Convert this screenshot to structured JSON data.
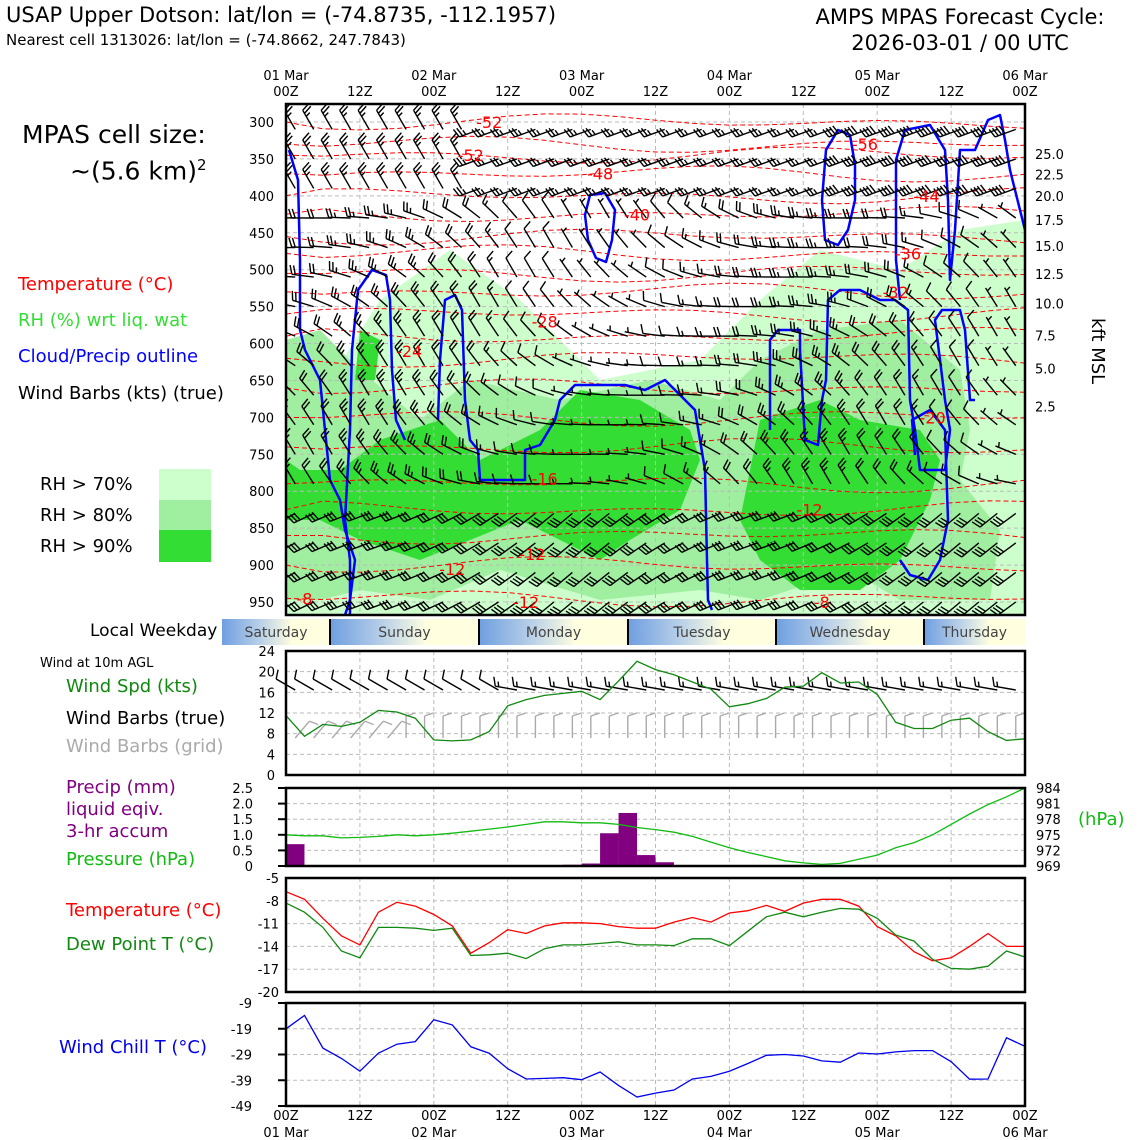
{
  "header": {
    "title": "USAP Upper Dotson: lat/lon = (-74.8735, -112.1957)",
    "subtitle": "Nearest cell 1313026: lat/lon = (-74.8662, 247.7843)",
    "cycle_line1": "AMPS MPAS Forecast Cycle:",
    "cycle_line2": "2026-03-01 / 00 UTC"
  },
  "cell_size": {
    "line1": "MPAS cell size:",
    "line2": "~(5.6 km)",
    "sup": "2"
  },
  "legend": {
    "temperature": "Temperature (°C)",
    "rh": "RH (%) wrt liq. wat",
    "cloud": "Cloud/Precip outline",
    "barbs": "Wind Barbs (kts) (true)",
    "rh70": "RH > 70%",
    "rh80": "RH > 80%",
    "rh90": "RH > 90%",
    "local_weekday": "Local Weekday",
    "wind_10m": "Wind at 10m AGL",
    "wind_spd": "Wind Spd (kts)",
    "barbs_true": "Wind Barbs (true)",
    "barbs_grid": "Wind Barbs (grid)",
    "precip1": "Precip (mm)",
    "precip2": "liquid eqiv.",
    "precip3": "3-hr accum",
    "pressure": "Pressure (hPa)",
    "temp2": "Temperature (°C)",
    "dewpt": "Dew Point T (°C)",
    "windchill": "Wind Chill T (°C)",
    "hpa": "(hPa)",
    "kft": "kft MSL"
  },
  "colors": {
    "temperature": "#ff0000",
    "rh_label": "#33dd33",
    "cloud": "#0000ff",
    "rh70": "#ccffcc",
    "rh80": "#a0eea0",
    "rh90": "#33dd33",
    "wind_spd": "#118811",
    "barbs_grid": "#aaaaaa",
    "precip": "#800080",
    "pressure": "#11bb11",
    "dewpt": "#118811",
    "windchill": "#0000ee"
  },
  "chart_data": [
    {
      "type": "heatmap",
      "name": "cross-section",
      "title": "Vertical cross-section (RH shading, temperature contours, cloud outline, wind barbs)",
      "top_axis": {
        "dates": [
          "01 Mar",
          "",
          "02 Mar",
          "",
          "03 Mar",
          "",
          "04 Mar",
          "",
          "05 Mar",
          "",
          "06 Mar"
        ],
        "hours": [
          "00Z",
          "12Z",
          "00Z",
          "12Z",
          "00Z",
          "12Z",
          "00Z",
          "12Z",
          "00Z",
          "12Z",
          "00Z"
        ]
      },
      "ylabel_left": "Pressure (hPa)",
      "yticks_left": [
        300,
        350,
        400,
        450,
        500,
        550,
        600,
        650,
        700,
        750,
        800,
        850,
        900,
        950
      ],
      "ylim": [
        950,
        300
      ],
      "ylabel_right": "kft MSL",
      "yticks_right": [
        {
          "label": "25.0",
          "hpa": 343
        },
        {
          "label": "22.5",
          "hpa": 371
        },
        {
          "label": "20.0",
          "hpa": 400
        },
        {
          "label": "17.5",
          "hpa": 433
        },
        {
          "label": "15.0",
          "hpa": 468
        },
        {
          "label": "12.5",
          "hpa": 506
        },
        {
          "label": "10.0",
          "hpa": 546
        },
        {
          "label": "7.5",
          "hpa": 589
        },
        {
          "label": "5.0",
          "hpa": 634
        },
        {
          "label": "2.5",
          "hpa": 685
        }
      ],
      "temperature_contour_labels": [
        {
          "text": "-52",
          "hour": 33,
          "hpa": 300
        },
        {
          "text": "-52",
          "hour": 30,
          "hpa": 345
        },
        {
          "text": "-56",
          "hour": 94,
          "hpa": 330
        },
        {
          "text": "-48",
          "hour": 51,
          "hpa": 370
        },
        {
          "text": "-44",
          "hour": 104,
          "hpa": 400
        },
        {
          "text": "-40",
          "hour": 57,
          "hpa": 425
        },
        {
          "text": "-36",
          "hour": 101,
          "hpa": 478
        },
        {
          "text": "-32",
          "hour": 99,
          "hpa": 530
        },
        {
          "text": "-28",
          "hour": 42,
          "hpa": 570
        },
        {
          "text": "-24",
          "hour": 20,
          "hpa": 610
        },
        {
          "text": "-20",
          "hour": 105,
          "hpa": 700
        },
        {
          "text": "-16",
          "hour": 42,
          "hpa": 783
        },
        {
          "text": "-12",
          "hour": 85,
          "hpa": 825
        },
        {
          "text": "-12",
          "hour": 40,
          "hpa": 885
        },
        {
          "text": "-12",
          "hour": 27,
          "hpa": 905
        },
        {
          "text": "-12",
          "hour": 39,
          "hpa": 950
        },
        {
          "text": "-8",
          "hour": 3,
          "hpa": 945
        },
        {
          "text": "-8",
          "hour": 87,
          "hpa": 950
        }
      ],
      "legend": [
        "Temperature (°C)",
        "RH (%) wrt liq. wat",
        "Cloud/Precip outline",
        "Wind Barbs (kts) (true)"
      ]
    },
    {
      "type": "table",
      "name": "local-weekday",
      "label": "Local Weekday",
      "days": [
        "Saturday",
        "Sunday",
        "Monday",
        "Tuesday",
        "Wednesday",
        "Thursday"
      ]
    },
    {
      "type": "line",
      "name": "wind-10m",
      "title": "Wind at 10m AGL",
      "x_hours_step": 3,
      "ylim": [
        0,
        24
      ],
      "yticks": [
        0,
        4,
        8,
        12,
        16,
        20,
        24
      ],
      "series": [
        {
          "name": "Wind Spd (kts)",
          "values": [
            11.5,
            7.5,
            9.8,
            9.4,
            10.2,
            12.5,
            12.2,
            11.0,
            6.8,
            6.6,
            6.8,
            8.4,
            13.4,
            14.6,
            15.4,
            15.8,
            16.2,
            14.6,
            18.2,
            22.0,
            20.4,
            19.4,
            18.0,
            16.6,
            13.2,
            13.8,
            14.8,
            17.0,
            17.2,
            19.8,
            17.8,
            18.0,
            15.6,
            10.2,
            9.0,
            9.0,
            10.6,
            11.0,
            8.4,
            6.7,
            7.0
          ]
        }
      ]
    },
    {
      "type": "bar",
      "name": "precip-pressure",
      "x_hours_step": 3,
      "ylim_precip": [
        0,
        2.5
      ],
      "yticks_precip": [
        "0",
        "0.5",
        "1.0",
        "1.5",
        "2.0",
        "2.5"
      ],
      "ylim_pressure": [
        969,
        984
      ],
      "yticks_pressure": [
        969,
        972,
        975,
        978,
        981,
        984
      ],
      "ylabel_right": "(hPa)",
      "series": [
        {
          "name": "Precip (mm) liquid eqiv. 3-hr accum",
          "values": [
            0.7,
            0,
            0,
            0,
            0,
            0,
            0,
            0,
            0,
            0,
            0,
            0,
            0,
            0,
            0,
            0.04,
            0.08,
            1.05,
            1.7,
            0.35,
            0.12,
            0,
            0,
            0,
            0,
            0,
            0,
            0,
            0,
            0,
            0,
            0,
            0,
            0,
            0,
            0,
            0,
            0,
            0,
            0,
            0
          ]
        },
        {
          "name": "Pressure (hPa)",
          "values": [
            975.0,
            974.8,
            974.8,
            974.4,
            974.5,
            974.7,
            975.0,
            974.8,
            975.0,
            975.3,
            975.7,
            976.1,
            976.5,
            977.0,
            977.5,
            977.5,
            977.3,
            977.3,
            977.0,
            976.4,
            976.0,
            975.5,
            974.7,
            973.6,
            972.5,
            971.6,
            970.8,
            970.0,
            969.6,
            969.3,
            969.5,
            970.3,
            971.1,
            972.5,
            973.5,
            975.0,
            977.0,
            979.0,
            980.8,
            982.3,
            984.0
          ]
        }
      ]
    },
    {
      "type": "line",
      "name": "temperature-dewpoint",
      "x_hours_step": 3,
      "ylim": [
        -20,
        -5
      ],
      "yticks": [
        -5,
        -8,
        -11,
        -14,
        -17,
        -20
      ],
      "series": [
        {
          "name": "Temperature (°C)",
          "values": [
            -6.8,
            -7.8,
            -10.3,
            -12.6,
            -13.8,
            -9.5,
            -8.2,
            -8.7,
            -9.8,
            -11.3,
            -14.9,
            -13.5,
            -11.8,
            -12.3,
            -11.3,
            -10.9,
            -10.9,
            -11.0,
            -11.4,
            -11.6,
            -11.6,
            -10.8,
            -10.2,
            -10.8,
            -9.6,
            -9.3,
            -8.6,
            -9.4,
            -8.3,
            -7.8,
            -7.8,
            -8.7,
            -11.4,
            -12.6,
            -14.7,
            -15.9,
            -15.5,
            -14.0,
            -12.3,
            -14.0,
            -14.0
          ]
        },
        {
          "name": "Dew Point T (°C)",
          "values": [
            -8.3,
            -9.5,
            -11.5,
            -14.6,
            -15.5,
            -11.5,
            -11.5,
            -11.6,
            -11.9,
            -11.6,
            -15.2,
            -15.1,
            -14.9,
            -15.6,
            -14.3,
            -13.8,
            -13.8,
            -13.6,
            -13.4,
            -13.8,
            -13.8,
            -13.9,
            -13.0,
            -13.0,
            -13.9,
            -12.0,
            -10.1,
            -9.5,
            -10.1,
            -9.5,
            -9.0,
            -9.1,
            -10.3,
            -12.5,
            -13.3,
            -15.7,
            -16.9,
            -17.0,
            -16.6,
            -14.6,
            -15.4
          ]
        }
      ]
    },
    {
      "type": "line",
      "name": "wind-chill",
      "x_hours_step": 3,
      "ylim": [
        -49,
        -9
      ],
      "yticks": [
        -9,
        -19,
        -29,
        -39,
        -49
      ],
      "xticks": [
        "00Z",
        "12Z",
        "00Z",
        "12Z",
        "00Z",
        "12Z",
        "00Z",
        "12Z",
        "00Z",
        "12Z",
        "00Z"
      ],
      "xdates": [
        "01 Mar",
        "",
        "02 Mar",
        "",
        "03 Mar",
        "",
        "04 Mar",
        "",
        "05 Mar",
        "",
        "06 Mar"
      ],
      "series": [
        {
          "name": "Wind Chill T (°C)",
          "values": [
            -19.0,
            -13.8,
            -26.5,
            -30.5,
            -35.5,
            -28.5,
            -25.0,
            -24.0,
            -15.5,
            -17.5,
            -26.0,
            -28.5,
            -34.5,
            -38.5,
            -38.3,
            -38.0,
            -38.8,
            -35.8,
            -41.0,
            -45.5,
            -44.0,
            -42.8,
            -38.5,
            -37.5,
            -35.5,
            -32.5,
            -29.3,
            -29.0,
            -29.6,
            -31.5,
            -32.0,
            -28.4,
            -28.8,
            -28.0,
            -27.5,
            -27.5,
            -31.8,
            -38.6,
            -38.5,
            -22.5,
            -25.8
          ]
        }
      ]
    }
  ]
}
